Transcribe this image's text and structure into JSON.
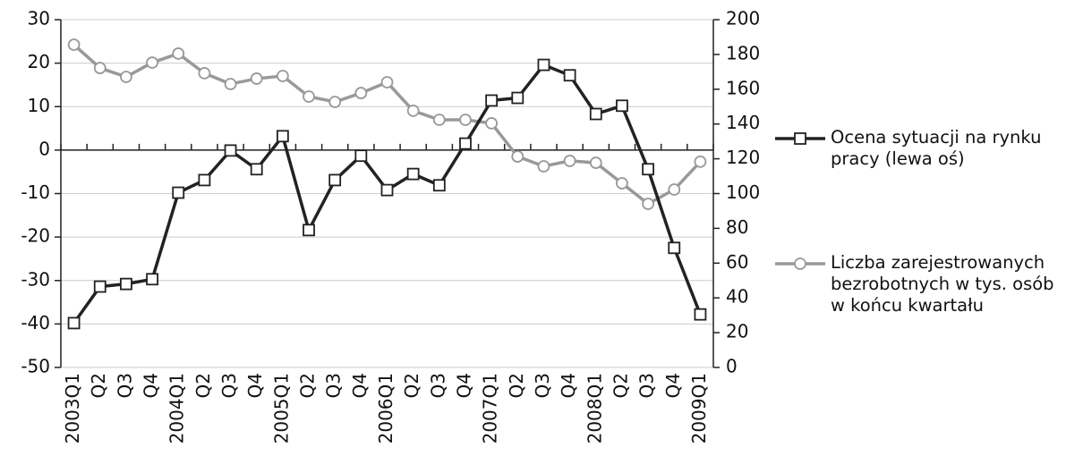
{
  "chart_data": {
    "type": "line",
    "categories": [
      "2003Q1",
      "Q2",
      "Q3",
      "Q4",
      "2004Q1",
      "Q2",
      "Q3",
      "Q4",
      "2005Q1",
      "Q2",
      "Q3",
      "Q4",
      "2006Q1",
      "Q2",
      "Q3",
      "Q4",
      "2007Q1",
      "Q2",
      "Q3",
      "Q4",
      "2008Q1",
      "Q2",
      "Q3",
      "Q4",
      "2009Q1"
    ],
    "series": [
      {
        "name": "Ocena sytuacji na rynku pracy (lewa oś)",
        "color": "#222222",
        "marker": "square",
        "values": [
          -39.8,
          -31.4,
          -30.8,
          -29.7,
          -9.8,
          -6.9,
          -0.1,
          -4.4,
          3.2,
          -18.4,
          -6.9,
          -1.3,
          -9.2,
          -5.5,
          -8.1,
          1.5,
          11.4,
          12.0,
          19.6,
          17.2,
          8.3,
          10.2,
          -4.4,
          -22.5,
          -37.8
        ]
      },
      {
        "name": "Liczba zarejestrowanych bezrobotnych w tys. osób w końcu kwartału",
        "color": "#999999",
        "marker": "circle",
        "axis": "y2",
        "values": [
          185.6,
          172.2,
          167.1,
          175.3,
          180.5,
          169.2,
          163.0,
          166.1,
          167.6,
          155.8,
          152.7,
          157.8,
          164.0,
          147.6,
          142.4,
          142.4,
          140.4,
          121.3,
          115.7,
          118.8,
          117.7,
          105.9,
          94.1,
          102.3,
          118.3
        ]
      }
    ],
    "ylim": [
      -50,
      30
    ],
    "yticks": [
      -50,
      -40,
      -30,
      -20,
      -10,
      0,
      10,
      20,
      30
    ],
    "y2lim": [
      0,
      200
    ],
    "y2ticks": [
      0,
      20,
      40,
      60,
      80,
      100,
      120,
      140,
      160,
      180,
      200
    ],
    "grid": true
  }
}
